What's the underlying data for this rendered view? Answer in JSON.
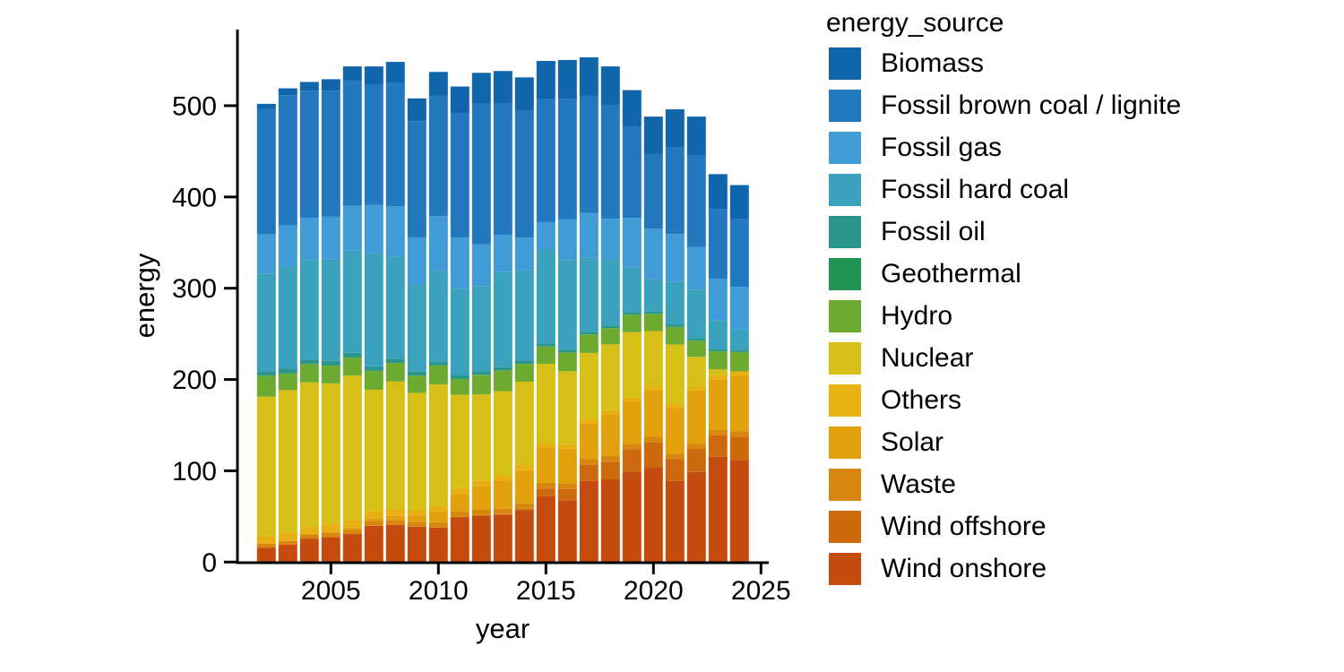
{
  "figure": {
    "background_color": "#ffffff",
    "text_color": "#000000",
    "axis_color": "#000000"
  },
  "chart_data": {
    "type": "bar",
    "stacked": true,
    "title": "",
    "xlabel": "year",
    "ylabel": "energy",
    "legend_title": "energy_source",
    "legend_position": "right",
    "grid": false,
    "xlim": [
      2001.5,
      2025.5
    ],
    "ylim": [
      0,
      580
    ],
    "x_ticks": [
      2005,
      2010,
      2015,
      2020,
      2025
    ],
    "y_ticks": [
      0,
      100,
      200,
      300,
      400,
      500
    ],
    "x": [
      2002,
      2003,
      2004,
      2005,
      2006,
      2007,
      2008,
      2009,
      2010,
      2011,
      2012,
      2013,
      2014,
      2015,
      2016,
      2017,
      2018,
      2019,
      2020,
      2021,
      2022,
      2023,
      2024
    ],
    "stack_order_bottom_to_top": [
      "Wind onshore",
      "Wind offshore",
      "Waste",
      "Solar",
      "Others",
      "Nuclear",
      "Hydro",
      "Geothermal",
      "Fossil oil",
      "Fossil hard coal",
      "Fossil gas",
      "Fossil brown coal / lignite",
      "Biomass"
    ],
    "series": [
      {
        "name": "Biomass",
        "color": "#1065ab",
        "values": [
          5.5,
          7.5,
          9.5,
          12.5,
          15.5,
          19.5,
          22.5,
          25,
          27,
          29.5,
          34,
          35.5,
          36,
          42,
          43,
          43,
          42,
          40,
          41,
          42,
          42,
          38,
          37.5
        ]
      },
      {
        "name": "Fossil brown coal / lignite",
        "color": "#2478be",
        "values": [
          137.3,
          142.7,
          139.6,
          138.2,
          137.3,
          132.1,
          135.6,
          127.3,
          130.9,
          136,
          154,
          143.9,
          139.4,
          134.6,
          131.2,
          127.7,
          124.9,
          99.9,
          81.9,
          94.7,
          100.6,
          76.5,
          74
        ]
      },
      {
        "name": "Fossil gas",
        "color": "#419bd6",
        "values": [
          43,
          45,
          46,
          47,
          49,
          53,
          55,
          52,
          60.5,
          56,
          46,
          41,
          36,
          30,
          45,
          49,
          45,
          54.5,
          55,
          52.5,
          47,
          45.8,
          46.8
        ]
      },
      {
        "name": "Fossil hard coal",
        "color": "#3aa2bd",
        "values": [
          107,
          112,
          109,
          111,
          112,
          124,
          112,
          95,
          99,
          95,
          93,
          104,
          99,
          103,
          98,
          81,
          72,
          48.7,
          35.6,
          46.4,
          53,
          31.1,
          22
        ]
      },
      {
        "name": "Fossil oil",
        "color": "#2a968c",
        "values": [
          5,
          5.2,
          5,
          5.1,
          5,
          4.9,
          4.8,
          4.5,
          4.2,
          4,
          3.8,
          3.6,
          3.4,
          3.2,
          3,
          2.9,
          2.8,
          2.7,
          2.6,
          2.7,
          2.8,
          2.6,
          2.5
        ]
      },
      {
        "name": "Geothermal",
        "color": "#219553",
        "values": [
          0,
          0,
          0,
          0,
          0,
          0,
          0,
          0,
          0,
          0,
          0.1,
          0.1,
          0.1,
          0.1,
          0.2,
          0.2,
          0.2,
          0.2,
          0.2,
          0.2,
          0.2,
          0.2,
          0.2
        ]
      },
      {
        "name": "Hydro",
        "color": "#6cab2f",
        "values": [
          22.9,
          18.2,
          20,
          19.4,
          19.8,
          20.7,
          20.3,
          18.9,
          20.6,
          17.3,
          21.5,
          22.7,
          19.5,
          18.9,
          20.5,
          20.1,
          17.6,
          19.2,
          18.6,
          19.1,
          17.5,
          19.7,
          21.1
        ]
      },
      {
        "name": "Nuclear",
        "color": "#d6bf17",
        "values": [
          152.4,
          156.4,
          157.9,
          154.6,
          158.7,
          133.2,
          140.1,
          127.7,
          133,
          102.2,
          94.1,
          92.1,
          91.8,
          86.8,
          80,
          72.2,
          71.9,
          71.1,
          60.9,
          65.4,
          32.8,
          6.7,
          0
        ]
      },
      {
        "name": "Others",
        "color": "#e9b011",
        "values": [
          8.5,
          8.4,
          8.2,
          8,
          7.8,
          7.5,
          7.2,
          6.8,
          6.5,
          6.2,
          5.9,
          5.6,
          5.3,
          5,
          4.9,
          4.8,
          4.7,
          4.6,
          4.4,
          4.3,
          4.2,
          4.1,
          4
        ]
      },
      {
        "name": "Solar",
        "color": "#e2a00d",
        "values": [
          0.2,
          0.3,
          0.6,
          1.3,
          2.2,
          3.1,
          4.4,
          6.6,
          11.7,
          19.6,
          26.4,
          31,
          36.1,
          38.7,
          38.1,
          39.4,
          45.8,
          46.4,
          50.6,
          50,
          58.5,
          55.7,
          61.5
        ]
      },
      {
        "name": "Waste",
        "color": "#d8870e",
        "values": [
          4.3,
          4.4,
          4.5,
          4.7,
          5,
          5.3,
          5.5,
          5.5,
          5.6,
          5.7,
          5.8,
          5.9,
          6,
          6.1,
          6.2,
          6.3,
          6.2,
          6.1,
          6,
          6,
          5.9,
          5.8,
          5.8
        ]
      },
      {
        "name": "Wind offshore",
        "color": "#cd6a0e",
        "values": [
          0,
          0,
          0,
          0,
          0,
          0,
          0,
          0.1,
          0.2,
          0.6,
          0.7,
          0.9,
          1.4,
          8.3,
          12.1,
          17.7,
          19.3,
          24.4,
          27.3,
          24,
          24.8,
          23.5,
          25.7
        ]
      },
      {
        "name": "Wind onshore",
        "color": "#c54c0e",
        "values": [
          15.9,
          18.9,
          25.7,
          27.2,
          30.7,
          39.7,
          40.6,
          38.6,
          37.8,
          48.9,
          50.7,
          51.7,
          57,
          72.3,
          67.8,
          88.7,
          90.6,
          99.2,
          103.9,
          88.7,
          98.7,
          115.3,
          111.9
        ]
      }
    ]
  }
}
